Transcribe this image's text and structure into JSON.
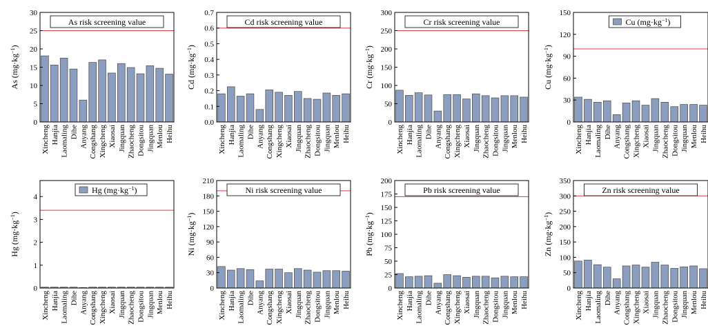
{
  "categories": [
    "Xincheng",
    "Hanjia",
    "Laomaling",
    "Dihe",
    "Anyang",
    "Congshang",
    "Xingcheng",
    "Xiaosai",
    "Jingquan",
    "Zhaocheng",
    "Dongsitou",
    "Jingquan",
    "Menlou",
    "Heihu"
  ],
  "colors": {
    "bar": "#8c9ec0",
    "bar_stroke": "#4a4a4a",
    "threshold": "#e0393e"
  },
  "chart_data": [
    {
      "id": "as",
      "type": "bar",
      "ylabel": "As (mg·kg⁻¹)",
      "ylim": [
        0,
        30
      ],
      "ticks": [
        0,
        5,
        10,
        15,
        20,
        25,
        30
      ],
      "decimals": 0,
      "values": [
        18.1,
        15.6,
        17.5,
        14.5,
        6.0,
        16.3,
        17.0,
        13.4,
        16.0,
        14.9,
        13.2,
        15.4,
        14.7,
        13.1
      ],
      "threshold": 25,
      "legend_label": "As risk screening value",
      "legend_type": "line"
    },
    {
      "id": "cd",
      "type": "bar",
      "ylabel": "Cd (mg·kg⁻¹)",
      "ylim": [
        0,
        0.7
      ],
      "ticks": [
        0,
        0.1,
        0.2,
        0.3,
        0.4,
        0.5,
        0.6,
        0.7
      ],
      "decimals": 1,
      "values": [
        0.18,
        0.225,
        0.165,
        0.18,
        0.08,
        0.205,
        0.19,
        0.17,
        0.195,
        0.15,
        0.145,
        0.185,
        0.17,
        0.18
      ],
      "threshold": 0.6,
      "legend_label": "Cd risk screening value",
      "legend_type": "line"
    },
    {
      "id": "cr",
      "type": "bar",
      "ylabel": "Cr (mg·kg⁻¹)",
      "ylim": [
        0,
        300
      ],
      "ticks": [
        0,
        50,
        100,
        150,
        200,
        250,
        300
      ],
      "decimals": 0,
      "values": [
        87,
        73,
        80,
        74,
        30,
        75,
        75,
        63,
        77,
        72,
        66,
        72,
        72,
        68
      ],
      "threshold": 250,
      "legend_label": "Cr risk screening value",
      "legend_type": "line"
    },
    {
      "id": "cu",
      "type": "bar",
      "ylabel": "Cu (mg·kg⁻¹)",
      "ylim": [
        0,
        150
      ],
      "ticks": [
        0,
        30,
        60,
        90,
        120,
        150
      ],
      "decimals": 0,
      "values": [
        34,
        31,
        27,
        29,
        10,
        26,
        29,
        23,
        32,
        27,
        21,
        24,
        24,
        23
      ],
      "threshold": 100,
      "legend_label": "Cu (mg·kg⁻¹)",
      "legend_type": "box"
    },
    {
      "id": "hg",
      "type": "bar",
      "ylabel": "Hg (mg·kg⁻¹)",
      "ylim": [
        0,
        4.7
      ],
      "ticks": [
        0,
        1,
        2,
        3,
        4
      ],
      "decimals": 0,
      "values": [
        0.04,
        0.04,
        0.04,
        0.04,
        0.02,
        0.04,
        0.04,
        0.04,
        0.04,
        0.04,
        0.04,
        0.04,
        0.04,
        0.04
      ],
      "threshold": 3.4,
      "legend_label": "Hg (mg·kg⁻¹)",
      "legend_type": "box"
    },
    {
      "id": "ni",
      "type": "bar",
      "ylabel": "Ni (mg·kg⁻¹)",
      "ylim": [
        0,
        210
      ],
      "ticks": [
        0,
        30,
        60,
        90,
        120,
        150,
        180,
        210
      ],
      "decimals": 0,
      "values": [
        42,
        35,
        38,
        36,
        14,
        37,
        37,
        30,
        38,
        35,
        31,
        34,
        34,
        33
      ],
      "threshold": 190,
      "legend_label": "Ni risk screening value",
      "legend_type": "line"
    },
    {
      "id": "pb",
      "type": "bar",
      "ylabel": "Pb (mg·kg⁻¹)",
      "ylim": [
        0,
        200
      ],
      "ticks": [
        0,
        25,
        50,
        75,
        100,
        125,
        150,
        175,
        200
      ],
      "decimals": 0,
      "values": [
        27,
        21,
        22,
        23,
        9,
        25,
        23,
        20,
        22,
        22,
        19,
        22,
        21,
        21
      ],
      "threshold": 170,
      "legend_label": "Pb risk screening value",
      "legend_type": "line"
    },
    {
      "id": "zn",
      "type": "bar",
      "ylabel": "Zn (mg·kg⁻¹)",
      "ylim": [
        0,
        350
      ],
      "ticks": [
        0,
        50,
        100,
        150,
        200,
        250,
        300,
        350
      ],
      "decimals": 0,
      "values": [
        88,
        91,
        76,
        68,
        30,
        72,
        75,
        68,
        84,
        75,
        64,
        69,
        72,
        63
      ],
      "threshold": 300,
      "legend_label": "Zn risk screening value",
      "legend_type": "line"
    }
  ]
}
